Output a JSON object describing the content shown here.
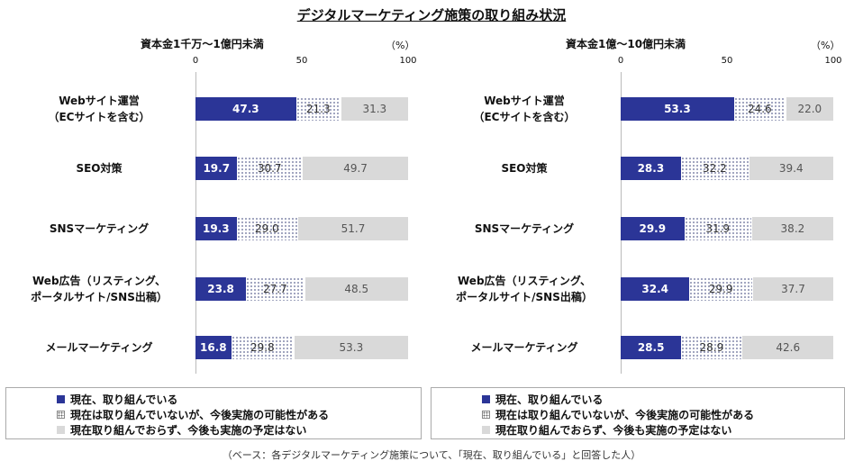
{
  "title": "デジタルマーケティング施策の取り組み状況",
  "footnote": "（ベース：各デジタルマーケティング施策について、「現在、取り組んでいる」と回答した人）",
  "colors": {
    "current": "#2b3597",
    "possible": "#dotted",
    "none": "#d9d9d9"
  },
  "legend": [
    "現在、取り組んでいる",
    "現在は取り組んでいないが、今後実施の可能性がある",
    "現在取り組んでおらず、今後も実施の予定はない"
  ],
  "chart_data": [
    {
      "type": "bar",
      "subtitle": "資本金1千万～1億円未満",
      "unit": "（%）",
      "xlim": [
        0,
        100
      ],
      "ticks": [
        "0",
        "50",
        "100"
      ],
      "categories": [
        [
          "Webサイト運営",
          "（ECサイトを含む）"
        ],
        [
          "SEO対策"
        ],
        [
          "SNSマーケティング"
        ],
        [
          "Web広告（リスティング、",
          "ポータルサイト/SNS出稿）"
        ],
        [
          "メールマーケティング"
        ]
      ],
      "series": [
        {
          "name": "現在、取り組んでいる",
          "values": [
            47.3,
            19.7,
            19.3,
            23.8,
            16.8
          ]
        },
        {
          "name": "現在は取り組んでいないが、今後実施の可能性がある",
          "values": [
            21.3,
            30.7,
            29.0,
            27.7,
            29.8
          ]
        },
        {
          "name": "現在取り組んでおらず、今後も実施の予定はない",
          "values": [
            31.3,
            49.7,
            51.7,
            48.5,
            53.3
          ]
        }
      ],
      "labels": [
        [
          "47.3",
          "19.7",
          "19.3",
          "23.8",
          "16.8"
        ],
        [
          "21.3",
          "30.7",
          "29.0",
          "27.7",
          "29.8"
        ],
        [
          "31.3",
          "49.7",
          "51.7",
          "48.5",
          "53.3"
        ]
      ]
    },
    {
      "type": "bar",
      "subtitle": "資本金1億～10億円未満",
      "unit": "（%）",
      "xlim": [
        0,
        100
      ],
      "ticks": [
        "0",
        "50",
        "100"
      ],
      "categories": [
        [
          "Webサイト運営",
          "（ECサイトを含む）"
        ],
        [
          "SEO対策"
        ],
        [
          "SNSマーケティング"
        ],
        [
          "Web広告（リスティング、",
          "ポータルサイト/SNS出稿）"
        ],
        [
          "メールマーケティング"
        ]
      ],
      "series": [
        {
          "name": "現在、取り組んでいる",
          "values": [
            53.3,
            28.3,
            29.9,
            32.4,
            28.5
          ]
        },
        {
          "name": "現在は取り組んでいないが、今後実施の可能性がある",
          "values": [
            24.6,
            32.2,
            31.9,
            29.9,
            28.9
          ]
        },
        {
          "name": "現在取り組んでおらず、今後も実施の予定はない",
          "values": [
            22.0,
            39.4,
            38.2,
            37.7,
            42.6
          ]
        }
      ],
      "labels": [
        [
          "53.3",
          "28.3",
          "29.9",
          "32.4",
          "28.5"
        ],
        [
          "24.6",
          "32.2",
          "31.9",
          "29.9",
          "28.9"
        ],
        [
          "22.0",
          "39.4",
          "38.2",
          "37.7",
          "42.6"
        ]
      ]
    }
  ]
}
